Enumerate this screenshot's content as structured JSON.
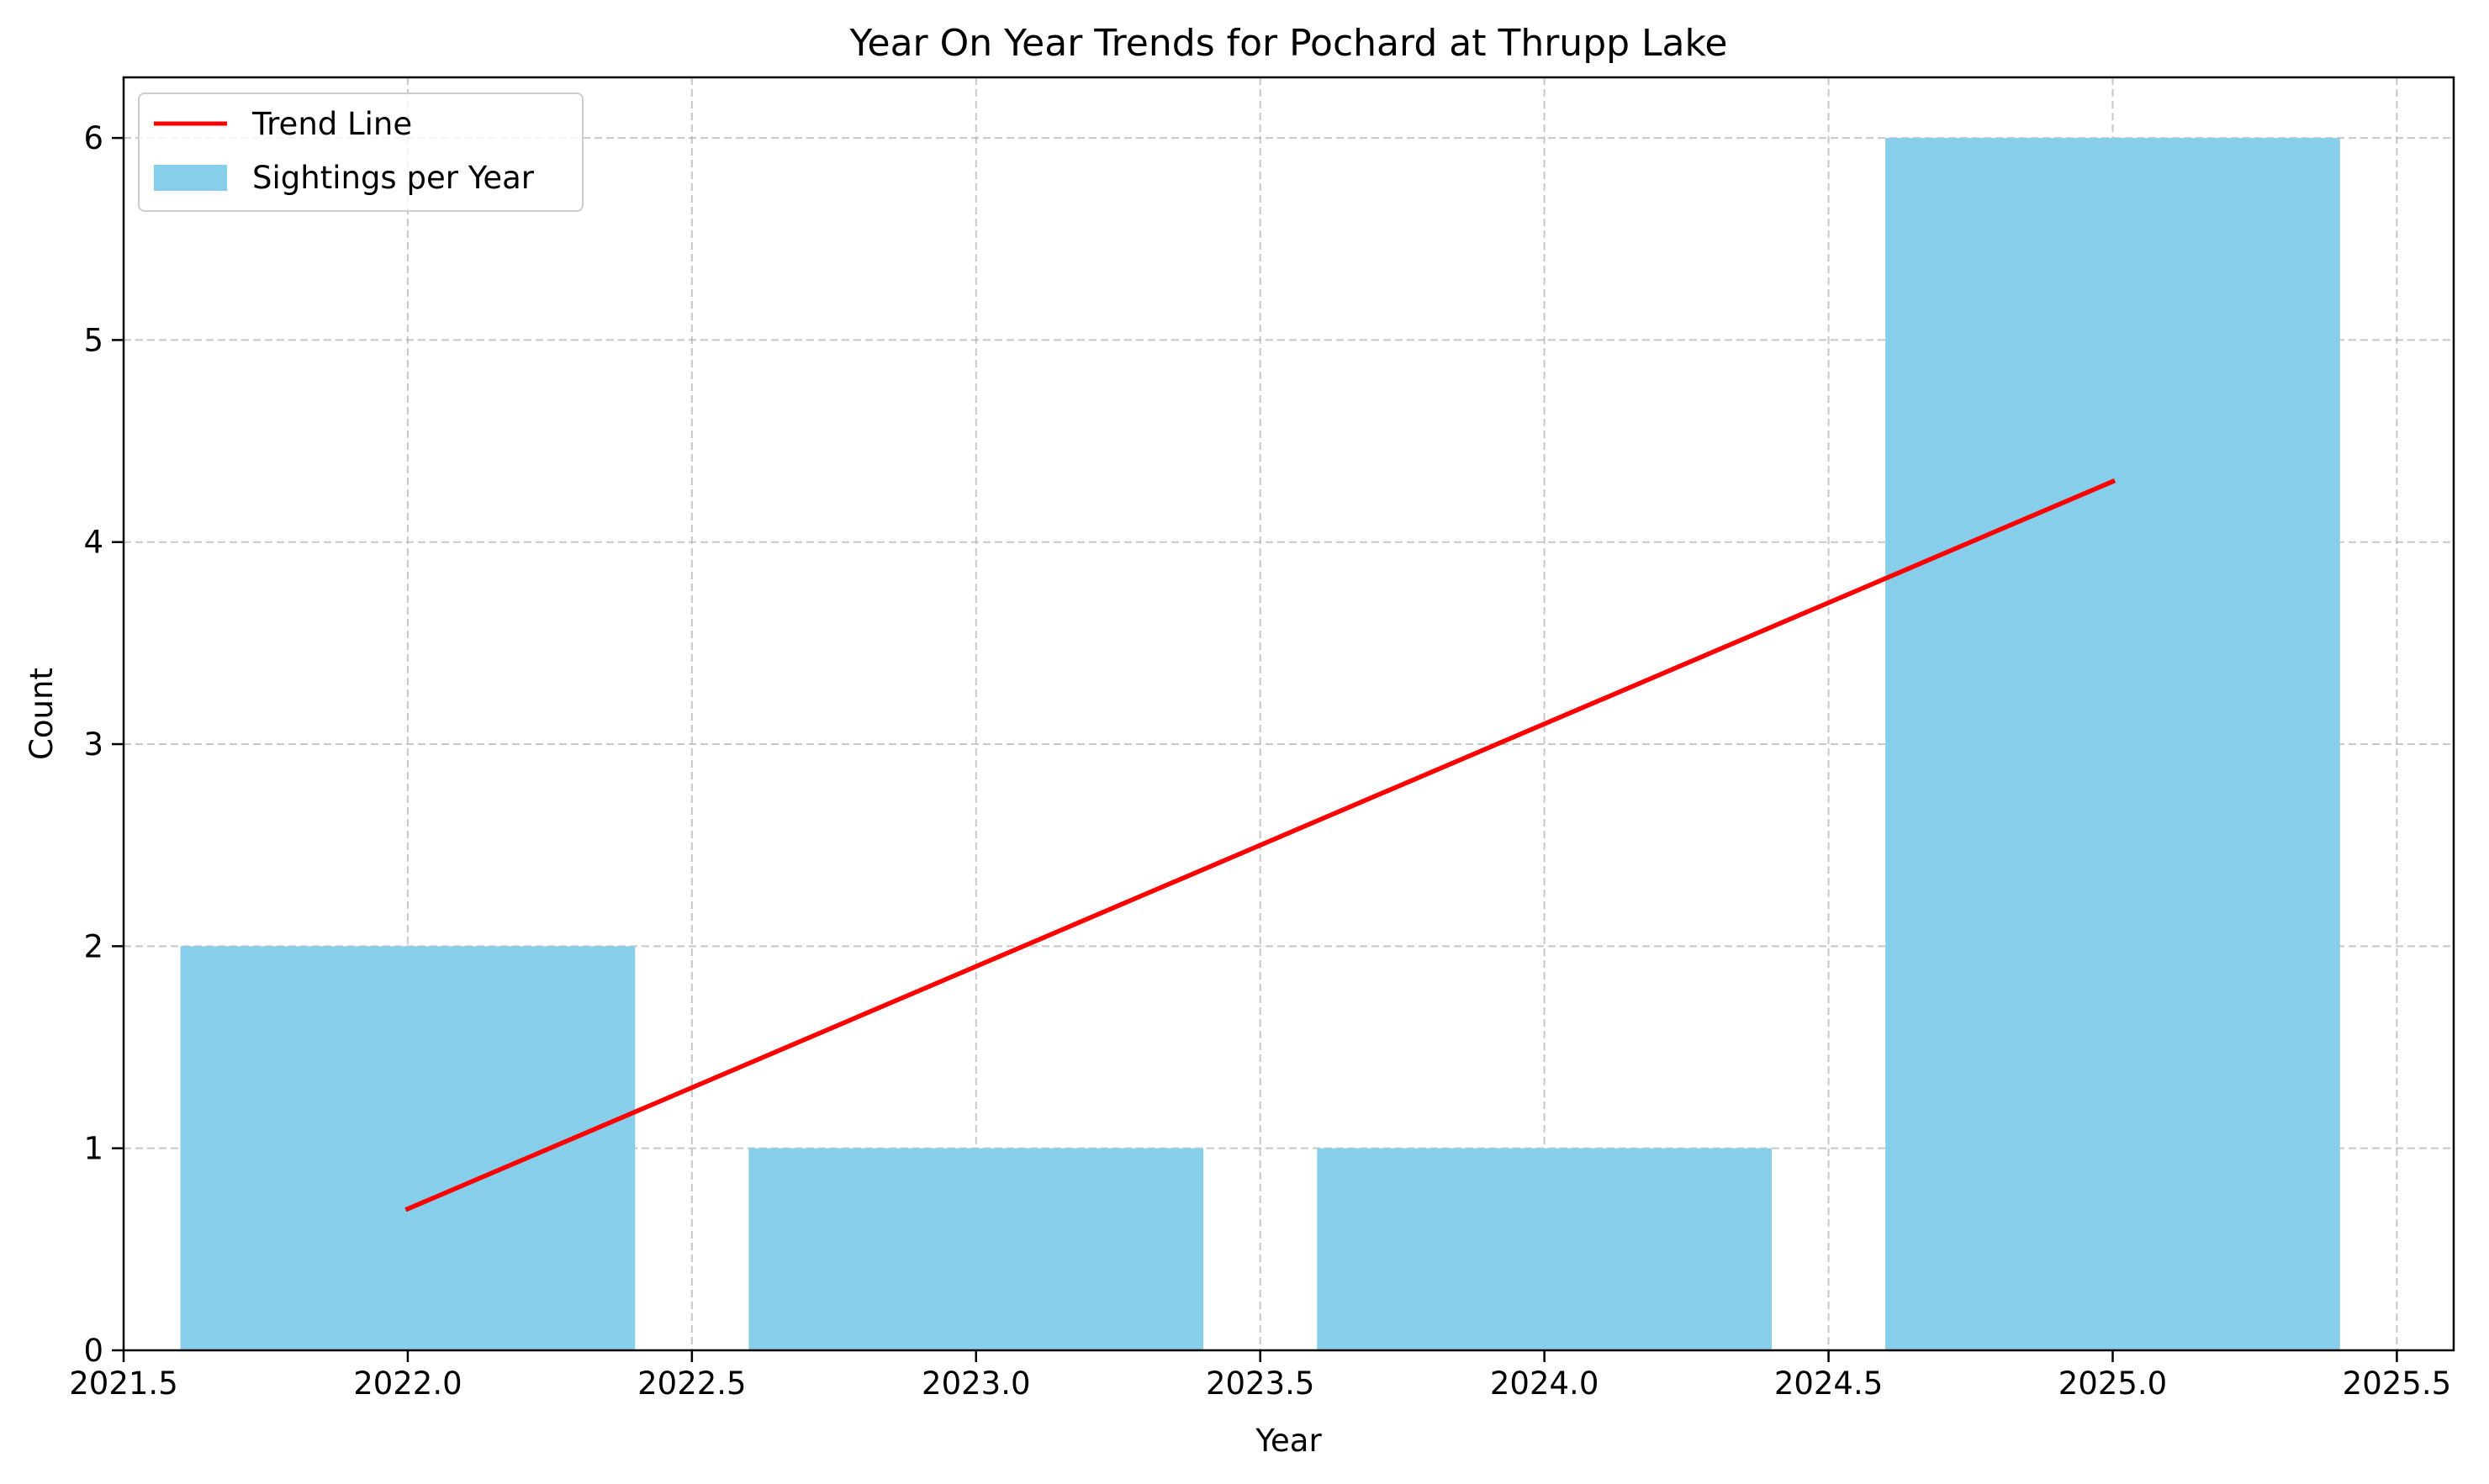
{
  "chart_data": {
    "type": "bar",
    "title": "Year On Year Trends for Pochard at Thrupp Lake",
    "xlabel": "Year",
    "ylabel": "Count",
    "xlim": [
      2021.5,
      2025.6
    ],
    "ylim": [
      0,
      6.3
    ],
    "xticks": [
      2021.5,
      2022.0,
      2022.5,
      2023.0,
      2023.5,
      2024.0,
      2024.5,
      2025.0,
      2025.5
    ],
    "xtick_labels": [
      "2021.5",
      "2022.0",
      "2022.5",
      "2023.0",
      "2023.5",
      "2024.0",
      "2024.5",
      "2025.0",
      "2025.5"
    ],
    "yticks": [
      0,
      1,
      2,
      3,
      4,
      5,
      6
    ],
    "ytick_labels": [
      "0",
      "1",
      "2",
      "3",
      "4",
      "5",
      "6"
    ],
    "grid": true,
    "legend_position": "top-left",
    "bar_width": 0.8,
    "series": [
      {
        "name": "Sightings per Year",
        "type": "bar",
        "color": "#87ceeb",
        "x": [
          2022,
          2023,
          2024,
          2025
        ],
        "values": [
          2,
          1,
          1,
          6
        ]
      },
      {
        "name": "Trend Line",
        "type": "line",
        "color": "#ff0000",
        "x": [
          2022,
          2025
        ],
        "values": [
          0.7,
          4.3
        ]
      }
    ]
  }
}
